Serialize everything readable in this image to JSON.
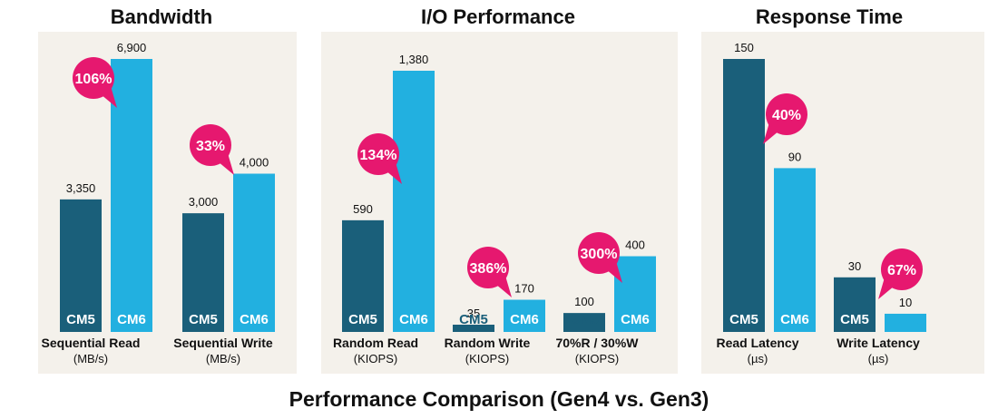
{
  "figure_title": "Performance Comparison (Gen4 vs. Gen3)",
  "colors": {
    "panel_bg": "#f4f1eb",
    "cm5": "#1a5f7a",
    "cm6": "#22b0e0",
    "badge": "#e6186f",
    "text": "#111111"
  },
  "chart_data": [
    {
      "type": "bar",
      "title": "Bandwidth",
      "series": [
        {
          "name": "CM5"
        },
        {
          "name": "CM6"
        }
      ],
      "groups": [
        {
          "label": "Sequential Read",
          "unit": "(MB/s)",
          "values": [
            3350,
            6900
          ],
          "value_labels": [
            "3,350",
            "6,900"
          ],
          "improvement": "106%"
        },
        {
          "label": "Sequential Write",
          "unit": "(MB/s)",
          "values": [
            3000,
            4000
          ],
          "value_labels": [
            "3,000",
            "4,000"
          ],
          "improvement": "33%"
        }
      ]
    },
    {
      "type": "bar",
      "title": "I/O Performance",
      "series": [
        {
          "name": "CM5"
        },
        {
          "name": "CM6"
        }
      ],
      "groups": [
        {
          "label": "Random Read",
          "unit": "(KIOPS)",
          "values": [
            590,
            1380
          ],
          "value_labels": [
            "590",
            "1,380"
          ],
          "improvement": "134%"
        },
        {
          "label": "Random Write",
          "unit": "(KIOPS)",
          "values": [
            35,
            170
          ],
          "value_labels": [
            "35",
            "170"
          ],
          "improvement": "386%"
        },
        {
          "label": "70%R / 30%W",
          "unit": "(KIOPS)",
          "values": [
            100,
            400
          ],
          "value_labels": [
            "100",
            "400"
          ],
          "improvement": "300%"
        }
      ]
    },
    {
      "type": "bar",
      "title": "Response Time",
      "series": [
        {
          "name": "CM5"
        },
        {
          "name": "CM6"
        }
      ],
      "groups": [
        {
          "label": "Read Latency",
          "unit": "(µs)",
          "values": [
            150,
            90
          ],
          "value_labels": [
            "150",
            "90"
          ],
          "improvement": "40%"
        },
        {
          "label": "Write Latency",
          "unit": "(µs)",
          "values": [
            30,
            10
          ],
          "value_labels": [
            "30",
            "10"
          ],
          "improvement": "67%"
        }
      ]
    }
  ]
}
